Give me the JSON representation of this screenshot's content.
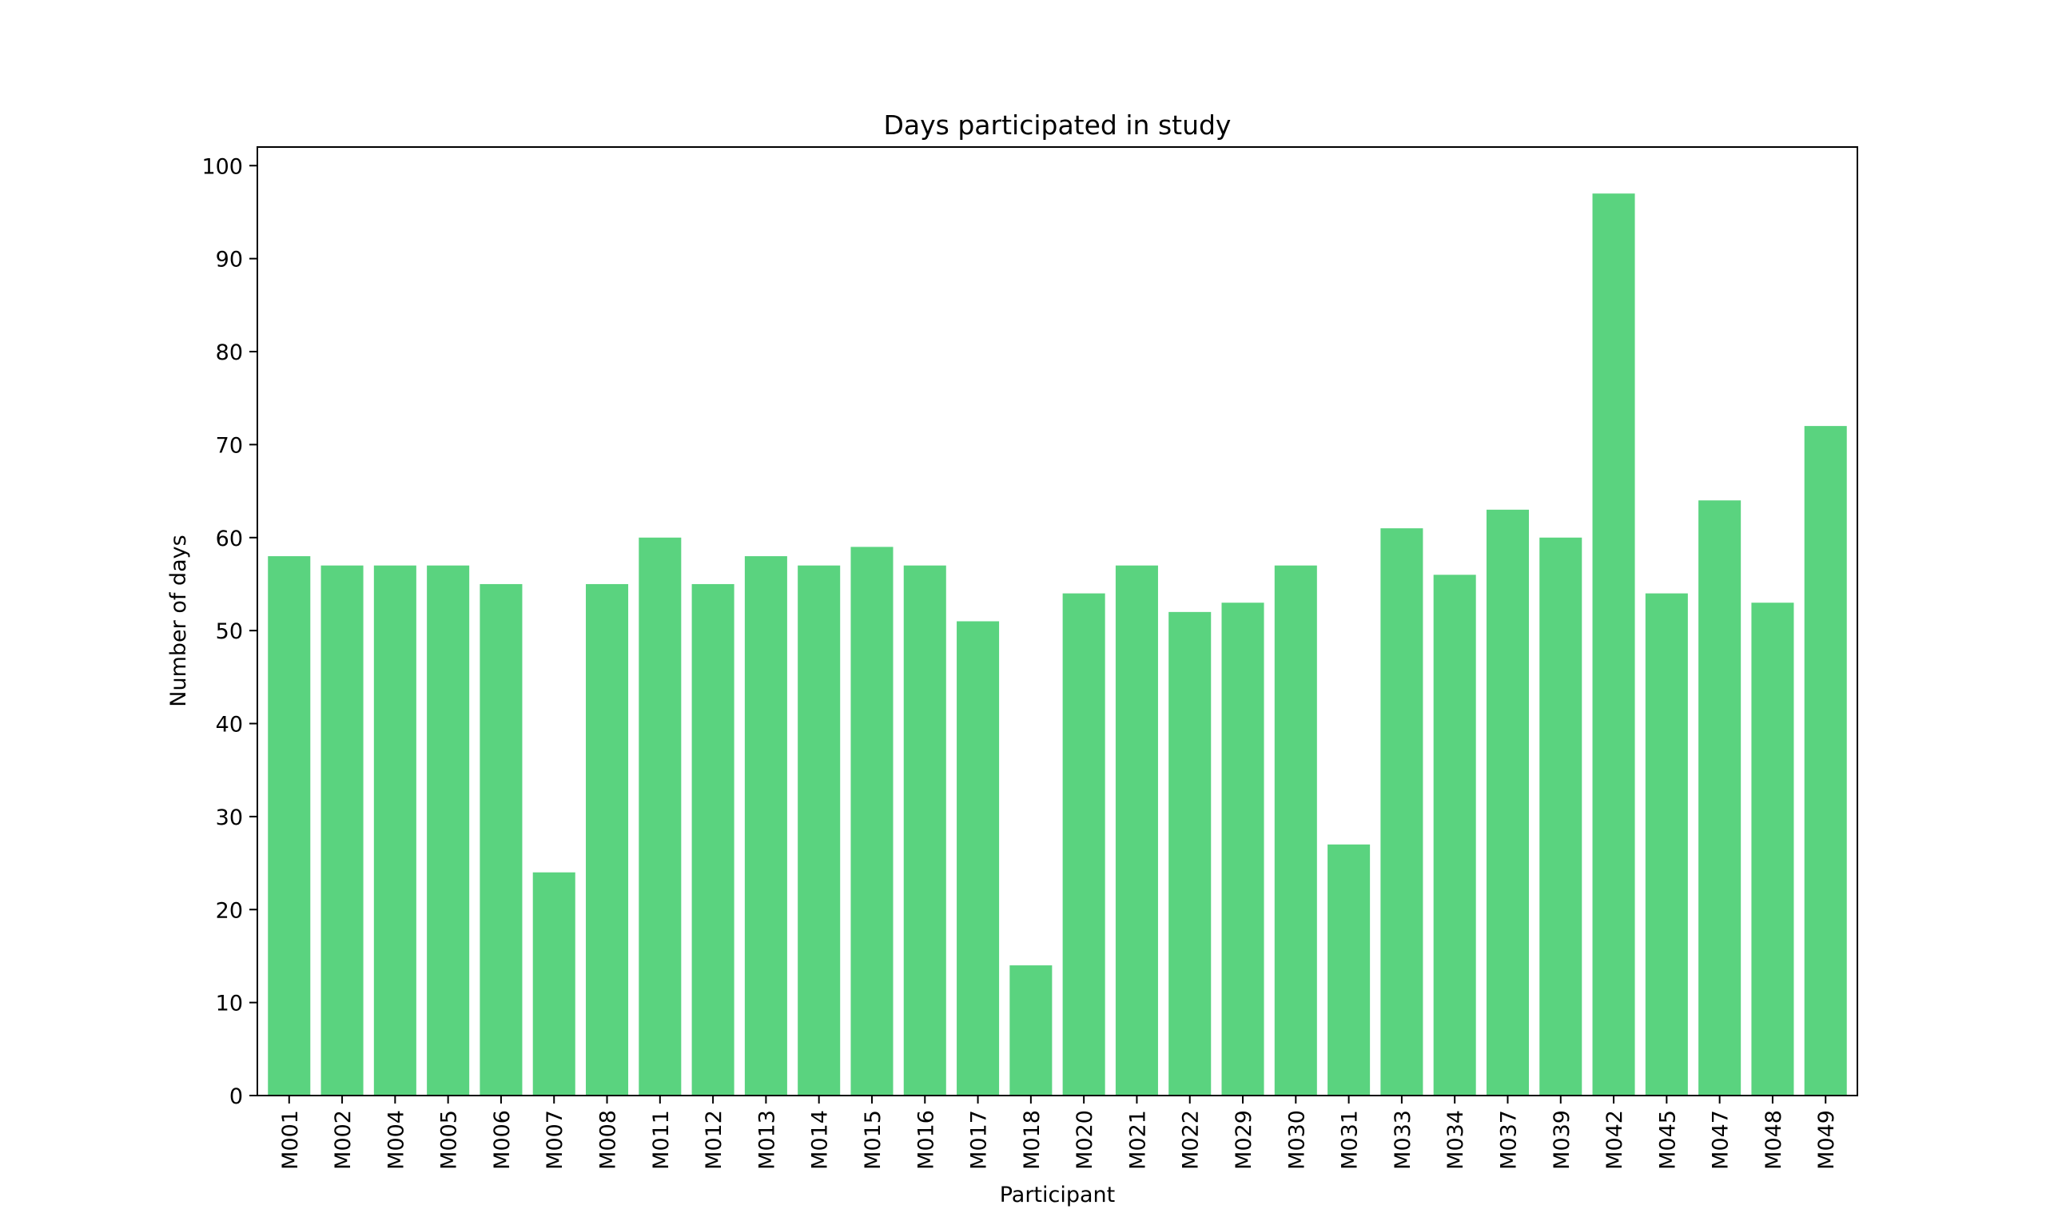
{
  "chart_data": {
    "type": "bar",
    "title": "Days participated in study",
    "xlabel": "Participant",
    "ylabel": "Number of days",
    "ylim": [
      0,
      102
    ],
    "yticks": [
      0,
      10,
      20,
      30,
      40,
      50,
      60,
      70,
      80,
      90,
      100
    ],
    "grid": false,
    "bar_color": "#5ad37f",
    "categories": [
      "M001",
      "M002",
      "M004",
      "M005",
      "M006",
      "M007",
      "M008",
      "M011",
      "M012",
      "M013",
      "M014",
      "M015",
      "M016",
      "M017",
      "M018",
      "M020",
      "M021",
      "M022",
      "M029",
      "M030",
      "M031",
      "M033",
      "M034",
      "M037",
      "M039",
      "M042",
      "M045",
      "M047",
      "M048",
      "M049"
    ],
    "values": [
      58,
      57,
      57,
      57,
      55,
      24,
      55,
      60,
      55,
      58,
      57,
      59,
      57,
      51,
      14,
      54,
      57,
      52,
      53,
      57,
      27,
      61,
      56,
      63,
      60,
      97,
      54,
      64,
      53,
      72
    ]
  }
}
